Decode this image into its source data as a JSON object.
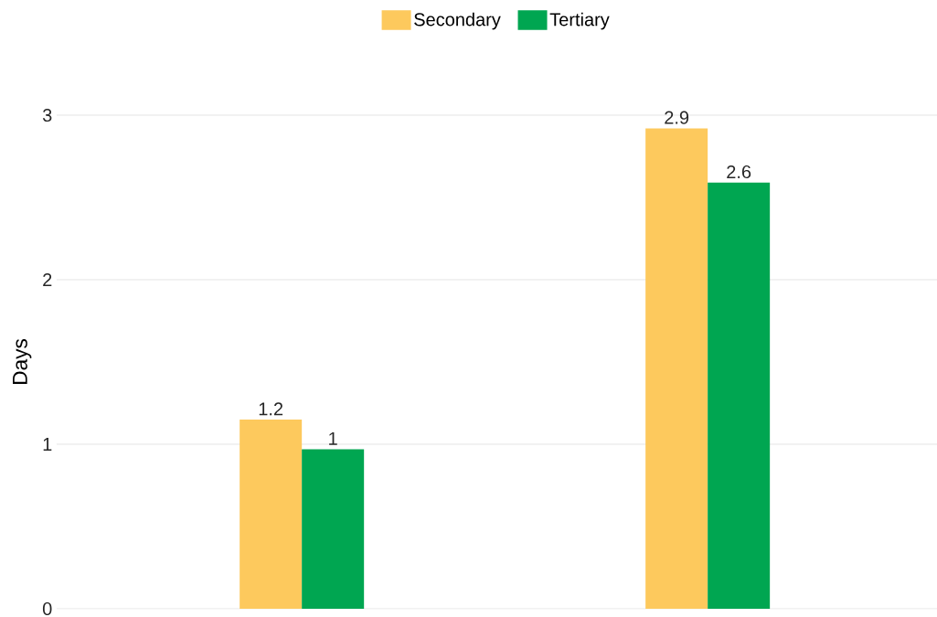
{
  "chart_data": {
    "type": "bar",
    "ylabel": "Days",
    "categories": [
      null,
      null
    ],
    "series": [
      {
        "name": "Secondary",
        "color": "#fdc95d",
        "values": [
          1.15,
          2.92
        ],
        "value_labels": [
          "1.2",
          "2.9"
        ]
      },
      {
        "name": "Tertiary",
        "color": "#00a651",
        "values": [
          0.97,
          2.59
        ],
        "value_labels": [
          "1",
          "2.6"
        ]
      }
    ],
    "ylim": [
      0,
      3
    ],
    "yticks": [
      0,
      1,
      2,
      3
    ],
    "grid": "y",
    "legend": "top"
  }
}
